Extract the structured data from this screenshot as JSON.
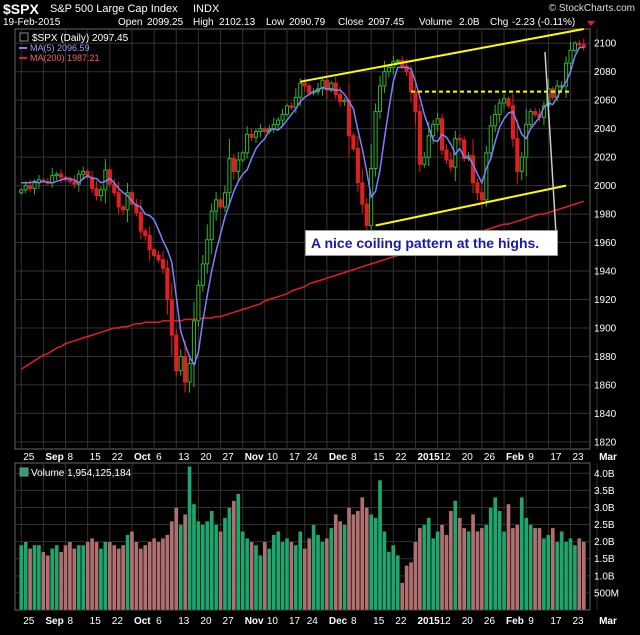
{
  "header": {
    "symbol": "$SPX",
    "name": "S&P 500 Large Cap Index",
    "exchange": "INDX",
    "watermark": "© StockCharts.com",
    "date": "19-Feb-2015",
    "open_label": "Open",
    "open": "2099.25",
    "high_label": "High",
    "high": "2102.13",
    "low_label": "Low",
    "low": "2090.79",
    "close_label": "Close",
    "close": "2097.45",
    "volume_label": "Volume",
    "volume": "2.0B",
    "chg_label": "Chg",
    "chg": "-2.23 (-0.11%)"
  },
  "legend": {
    "price": "$SPX (Daily) 2097.45",
    "ma5": "MA(5) 2096.59",
    "ma200": "MA(200) 1987.21",
    "volume": "Volume 1,954,125,184"
  },
  "annotation": "A nice coiling pattern at the highs.",
  "colors": {
    "up": "#2fb52f",
    "down": "#e02020",
    "ma5": "#8080ff",
    "ma200": "#e02020",
    "trendline": "#ffff00",
    "grid": "#333333",
    "vol_up": "#1fa56e",
    "vol_down": "#b07070"
  },
  "chart_data": [
    {
      "type": "candlestick",
      "ylim": [
        1815,
        2110
      ],
      "yticks": [
        1820,
        1840,
        1860,
        1880,
        1900,
        1920,
        1940,
        1960,
        1980,
        2000,
        2020,
        2040,
        2060,
        2080,
        2100
      ],
      "xlabels": [
        "25",
        "Sep",
        "8",
        "15",
        "22",
        "Oct",
        "6",
        "13",
        "20",
        "27",
        "Nov",
        "10",
        "17",
        "24",
        "Dec",
        "8",
        "15",
        "22",
        "2015",
        "12",
        "20",
        "26",
        "Feb",
        "9",
        "17",
        "23",
        "Mar"
      ],
      "bold_labels": [
        "Sep",
        "Oct",
        "Nov",
        "Dec",
        "2015",
        "Feb",
        "Mar"
      ],
      "label_idx": [
        0,
        5,
        10,
        15,
        20,
        25,
        30,
        35,
        40,
        45,
        50,
        55,
        60,
        64,
        69,
        74,
        79,
        84,
        89,
        94,
        99,
        104,
        109,
        114,
        119,
        124,
        130
      ],
      "closes": [
        1997,
        2000,
        1998,
        2002,
        2004,
        2003,
        2002,
        2007,
        2008,
        2006,
        2004,
        2003,
        2001,
        2008,
        2010,
        2006,
        1998,
        1993,
        1997,
        2011,
        2001,
        1995,
        1985,
        1983,
        1995,
        1987,
        1981,
        1968,
        1965,
        1955,
        1951,
        1948,
        1942,
        1920,
        1895,
        1870,
        1880,
        1862,
        1875,
        1905,
        1930,
        1945,
        1962,
        1982,
        1990,
        1985,
        1995,
        2019,
        2010,
        2018,
        2023,
        2036,
        2034,
        2038,
        2040,
        2038,
        2040,
        2043,
        2046,
        2050,
        2056,
        2055,
        2062,
        2072,
        2070,
        2065,
        2066,
        2068,
        2074,
        2067,
        2072,
        2064,
        2059,
        2060,
        2035,
        2026,
        2002,
        1987,
        1972,
        2012,
        2052,
        2070,
        2080,
        2083,
        2087,
        2088,
        2084,
        2080,
        2066,
        2052,
        2015,
        2020,
        2035,
        2043,
        2047,
        2025,
        2018,
        2013,
        2033,
        2032,
        2019,
        2021,
        2002,
        1995,
        1990,
        2023,
        2042,
        2050,
        2058,
        2061,
        2056,
        2033,
        2010,
        2020,
        2043,
        2052,
        2050,
        2048,
        2056,
        2068,
        2062,
        2070,
        2070,
        2086,
        2095,
        2100,
        2099,
        2097
      ],
      "ma5": [
        2002,
        2002,
        2002,
        2003,
        2002,
        2003,
        2002,
        2002,
        2003,
        2004,
        2005,
        2005,
        2004,
        2002,
        2005,
        2007,
        2005,
        2005,
        2002,
        2003,
        2005,
        2002,
        1998,
        1995,
        1993,
        1989,
        1986,
        1985,
        1980,
        1979,
        1976,
        1969,
        1961,
        1955,
        1946,
        1922,
        1898,
        1888,
        1880,
        1874,
        1883,
        1905,
        1923,
        1940,
        1954,
        1966,
        1978,
        1987,
        1996,
        2003,
        2008,
        2011,
        2019,
        2026,
        2030,
        2033,
        2039,
        2040,
        2039,
        2042,
        2046,
        2050,
        2054,
        2059,
        2062,
        2064,
        2066,
        2067,
        2069,
        2068,
        2068,
        2067,
        2067,
        2064,
        2059,
        2054,
        2039,
        2026,
        2010,
        1992,
        1996,
        2011,
        2033,
        2054,
        2073,
        2083,
        2083,
        2083,
        2082,
        2073,
        2062,
        2050,
        2041,
        2032,
        2031,
        2036,
        2034,
        2029,
        2022,
        2026,
        2020,
        2020,
        2015,
        2008,
        2002,
        2012,
        2019,
        2031,
        2041,
        2047,
        2051,
        2052,
        2044,
        2036,
        2033,
        2040,
        2044,
        2048,
        2055,
        2058,
        2057,
        2062,
        2068,
        2073,
        2080,
        2091,
        2097,
        2097
      ],
      "ma200": [
        1871,
        1873,
        1875,
        1877,
        1879,
        1881,
        1882,
        1884,
        1886,
        1887,
        1889,
        1890,
        1891,
        1892,
        1893,
        1894,
        1895,
        1896,
        1897,
        1898,
        1899,
        1900,
        1900,
        1901,
        1901,
        1902,
        1903,
        1903,
        1904,
        1904,
        1904,
        1904,
        1905,
        1905,
        1905,
        1905,
        1905,
        1906,
        1906,
        1906,
        1906,
        1907,
        1907,
        1907,
        1908,
        1908,
        1909,
        1910,
        1911,
        1912,
        1913,
        1914,
        1915,
        1916,
        1917,
        1919,
        1920,
        1921,
        1922,
        1923,
        1924,
        1926,
        1927,
        1928,
        1929,
        1931,
        1932,
        1933,
        1934,
        1935,
        1936,
        1937,
        1938,
        1939,
        1940,
        1941,
        1942,
        1943,
        1944,
        1945,
        1946,
        1947,
        1948,
        1949,
        1950,
        1951,
        1952,
        1953,
        1954,
        1955,
        1956,
        1957,
        1958,
        1959,
        1960,
        1960,
        1961,
        1962,
        1963,
        1964,
        1965,
        1966,
        1966,
        1967,
        1968,
        1969,
        1970,
        1971,
        1972,
        1973,
        1973,
        1974,
        1975,
        1976,
        1977,
        1978,
        1979,
        1980,
        1980,
        1981,
        1982,
        1983,
        1984,
        1985,
        1986,
        1987,
        1988,
        1989
      ],
      "trendlines": [
        {
          "from": [
            63,
            2073
          ],
          "to": [
            127,
            2110
          ],
          "style": "solid"
        },
        {
          "from": [
            80,
            1972
          ],
          "to": [
            123,
            2000
          ],
          "style": "solid"
        },
        {
          "from": [
            88,
            2066
          ],
          "to": [
            124,
            2066
          ],
          "style": "dashed"
        }
      ]
    },
    {
      "type": "bar",
      "name": "Volume",
      "ylim": [
        0,
        4.3
      ],
      "yticks": [
        "500M",
        "1.0B",
        "1.5B",
        "2.0B",
        "2.5B",
        "3.0B",
        "3.5B",
        "4.0B"
      ],
      "ytick_values": [
        0.5,
        1.0,
        1.5,
        2.0,
        2.5,
        3.0,
        3.5,
        4.0
      ],
      "values": [
        1.9,
        2.0,
        1.8,
        1.9,
        1.9,
        1.7,
        1.6,
        1.8,
        1.9,
        1.7,
        1.9,
        2.0,
        1.8,
        1.9,
        1.9,
        2.0,
        2.1,
        2.0,
        1.8,
        2.0,
        2.0,
        1.9,
        1.8,
        1.9,
        2.2,
        2.3,
        2.0,
        1.8,
        1.9,
        2.0,
        2.1,
        2.0,
        2.1,
        2.2,
        2.6,
        3.0,
        2.5,
        2.8,
        4.2,
        3.1,
        2.6,
        2.5,
        2.6,
        2.9,
        2.5,
        2.3,
        2.7,
        3.0,
        3.2,
        3.4,
        2.3,
        2.1,
        2.0,
        1.9,
        1.6,
        2.0,
        1.8,
        2.2,
        2.3,
        2.0,
        2.1,
        2.0,
        1.9,
        2.3,
        1.8,
        2.1,
        2.5,
        2.2,
        2.0,
        2.1,
        2.4,
        2.8,
        2.6,
        2.5,
        3.0,
        2.8,
        2.9,
        3.3,
        3.0,
        2.8,
        2.7,
        3.8,
        2.3,
        1.7,
        1.9,
        1.6,
        0.8,
        1.3,
        1.4,
        2.0,
        2.4,
        2.5,
        2.7,
        2.1,
        2.3,
        2.5,
        2.2,
        2.9,
        3.2,
        2.7,
        2.4,
        2.3,
        2.8,
        2.3,
        2.4,
        2.5,
        3.0,
        3.3,
        2.9,
        2.3,
        3.1,
        2.4,
        2.5,
        3.3,
        2.7,
        2.5,
        2.4,
        2.4,
        2.1,
        2.2,
        2.4,
        2.0,
        2.3,
        2.0,
        2.1,
        1.9,
        2.1,
        2.0
      ]
    }
  ]
}
